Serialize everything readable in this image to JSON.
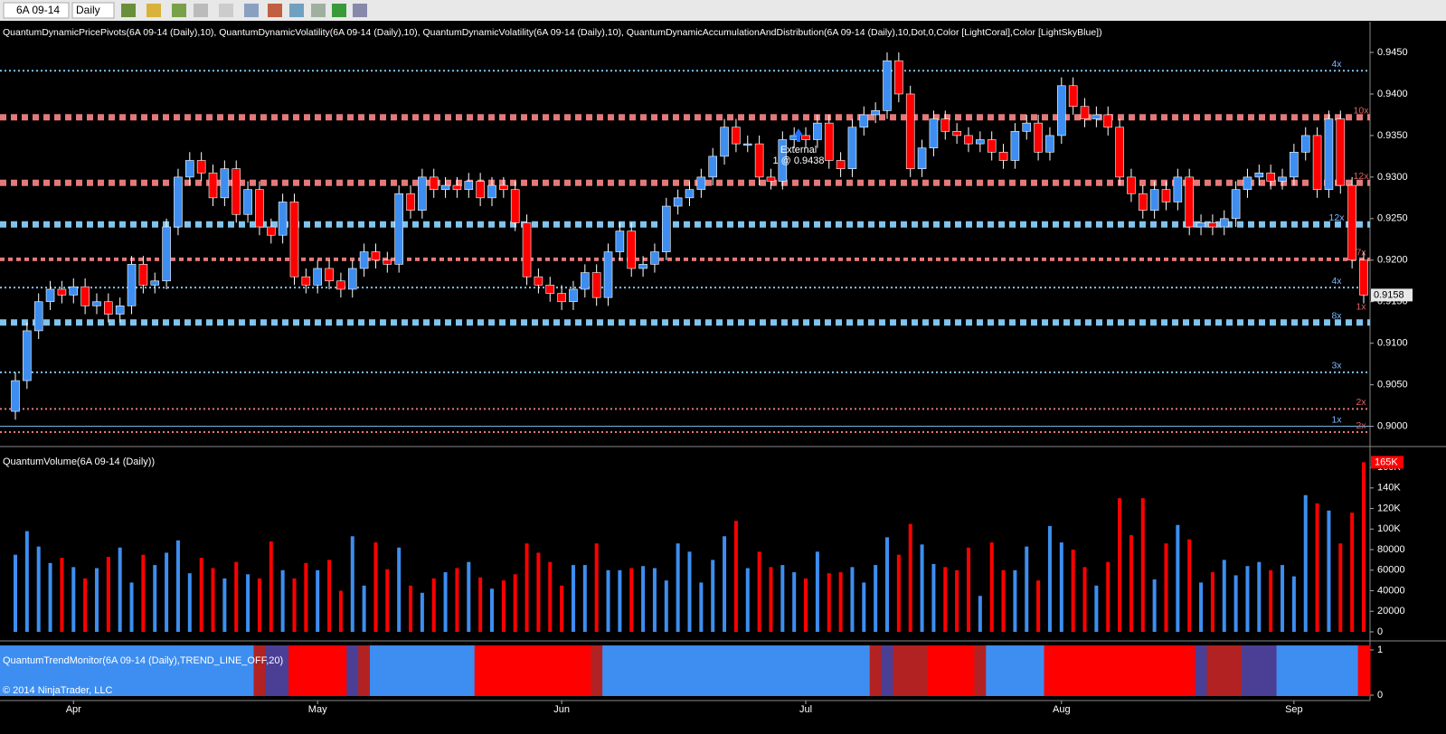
{
  "toolbar": {
    "instrument": "6A 09-14",
    "period": "Daily"
  },
  "chart_data": [
    {
      "type": "candlestick",
      "title": "QuantumDynamicPricePivots(6A 09-14 (Daily),10), QuantumDynamicVolatility(6A 09-14 (Daily),10), QuantumDynamicVolatility(6A 09-14 (Daily),10), QuantumDynamicAccumulationAndDistribution(6A 09-14 (Daily),10,Dot,0,Color [LightCoral],Color [LightSkyBlue])",
      "categories": [
        null,
        null,
        null,
        null,
        null,
        "Apr",
        null,
        null,
        null,
        null,
        null,
        null,
        null,
        null,
        null,
        null,
        null,
        null,
        null,
        null,
        null,
        null,
        null,
        null,
        null,
        null,
        "May",
        null,
        null,
        null,
        null,
        null,
        null,
        null,
        null,
        null,
        null,
        null,
        null,
        null,
        null,
        null,
        null,
        null,
        null,
        null,
        null,
        "Jun",
        null,
        null,
        null,
        null,
        null,
        null,
        null,
        null,
        null,
        null,
        null,
        null,
        null,
        null,
        null,
        null,
        null,
        null,
        null,
        null,
        "Jul",
        null,
        null,
        null,
        null,
        null,
        null,
        null,
        null,
        null,
        null,
        null,
        null,
        null,
        null,
        null,
        null,
        null,
        null,
        null,
        null,
        null,
        "Aug",
        null,
        null,
        null,
        null,
        null,
        null,
        null,
        null,
        null,
        null,
        null,
        null,
        null,
        null,
        null,
        null,
        null,
        null,
        null,
        "Sep",
        null,
        null,
        null,
        null,
        null,
        null
      ],
      "open": [
        0.9018,
        0.9055,
        0.9115,
        0.915,
        0.9165,
        0.9158,
        0.9168,
        0.9145,
        0.915,
        0.9135,
        0.9145,
        0.9195,
        0.917,
        0.9175,
        0.924,
        0.93,
        0.932,
        0.9305,
        0.9275,
        0.931,
        0.9255,
        0.9285,
        0.924,
        0.923,
        0.927,
        0.918,
        0.917,
        0.919,
        0.9175,
        0.9165,
        0.919,
        0.921,
        0.92,
        0.9195,
        0.928,
        0.926,
        0.93,
        0.9285,
        0.929,
        0.9285,
        0.9295,
        0.9275,
        0.929,
        0.9285,
        0.9245,
        0.918,
        0.917,
        0.916,
        0.915,
        0.9165,
        0.9185,
        0.9155,
        0.921,
        0.9235,
        0.919,
        0.9195,
        0.921,
        0.9265,
        0.9275,
        0.9285,
        0.93,
        0.9325,
        0.936,
        0.934,
        0.934,
        0.93,
        0.9295,
        0.9345,
        0.935,
        0.9345,
        0.9365,
        0.932,
        0.931,
        0.936,
        0.9375,
        0.938,
        0.944,
        0.94,
        0.931,
        0.9335,
        0.937,
        0.9355,
        0.935,
        0.934,
        0.9345,
        0.933,
        0.932,
        0.9355,
        0.9365,
        0.933,
        0.935,
        0.941,
        0.9385,
        0.937,
        0.9375,
        0.936,
        0.93,
        0.928,
        0.926,
        0.9285,
        0.927,
        0.93,
        0.924,
        0.9245,
        0.924,
        0.925,
        0.9285,
        0.93,
        0.9305,
        0.9295,
        0.93,
        0.933,
        0.935,
        0.9285,
        0.937,
        0.929,
        0.92
      ],
      "high": [
        0.9065,
        0.9125,
        0.916,
        0.9175,
        0.9175,
        0.9178,
        0.9178,
        0.916,
        0.916,
        0.9155,
        0.9205,
        0.9205,
        0.9185,
        0.925,
        0.931,
        0.933,
        0.933,
        0.9315,
        0.932,
        0.932,
        0.9295,
        0.9295,
        0.925,
        0.928,
        0.928,
        0.919,
        0.92,
        0.92,
        0.9185,
        0.92,
        0.922,
        0.922,
        0.921,
        0.929,
        0.929,
        0.931,
        0.931,
        0.93,
        0.93,
        0.9305,
        0.9305,
        0.93,
        0.93,
        0.9295,
        0.9255,
        0.919,
        0.918,
        0.917,
        0.9175,
        0.9195,
        0.9195,
        0.922,
        0.9245,
        0.9245,
        0.9205,
        0.922,
        0.9275,
        0.9285,
        0.9295,
        0.931,
        0.9335,
        0.937,
        0.937,
        0.935,
        0.935,
        0.931,
        0.9355,
        0.936,
        0.936,
        0.9375,
        0.9375,
        0.933,
        0.937,
        0.9385,
        0.939,
        0.945,
        0.945,
        0.941,
        0.9345,
        0.938,
        0.938,
        0.9365,
        0.936,
        0.9355,
        0.9355,
        0.934,
        0.9365,
        0.9375,
        0.9375,
        0.936,
        0.942,
        0.942,
        0.9395,
        0.9385,
        0.9385,
        0.937,
        0.931,
        0.929,
        0.9295,
        0.9295,
        0.931,
        0.931,
        0.9255,
        0.9255,
        0.926,
        0.9295,
        0.931,
        0.9315,
        0.9315,
        0.931,
        0.934,
        0.936,
        0.936,
        0.938,
        0.938,
        0.93,
        0.921
      ],
      "low": [
        0.9008,
        0.9045,
        0.9105,
        0.914,
        0.9148,
        0.9148,
        0.9135,
        0.9135,
        0.9125,
        0.9125,
        0.9135,
        0.916,
        0.916,
        0.9165,
        0.923,
        0.929,
        0.9295,
        0.9265,
        0.9265,
        0.9245,
        0.9245,
        0.923,
        0.922,
        0.922,
        0.917,
        0.916,
        0.916,
        0.9165,
        0.9155,
        0.9155,
        0.918,
        0.919,
        0.9185,
        0.9185,
        0.925,
        0.925,
        0.9275,
        0.9275,
        0.9275,
        0.9275,
        0.9265,
        0.9265,
        0.9275,
        0.9235,
        0.917,
        0.916,
        0.915,
        0.914,
        0.914,
        0.9155,
        0.9145,
        0.9145,
        0.92,
        0.918,
        0.918,
        0.9185,
        0.92,
        0.9255,
        0.9265,
        0.9275,
        0.929,
        0.9315,
        0.933,
        0.933,
        0.929,
        0.9285,
        0.9285,
        0.9335,
        0.9335,
        0.9335,
        0.931,
        0.93,
        0.93,
        0.935,
        0.9365,
        0.937,
        0.939,
        0.93,
        0.93,
        0.9325,
        0.9345,
        0.934,
        0.933,
        0.933,
        0.932,
        0.931,
        0.931,
        0.9345,
        0.932,
        0.932,
        0.934,
        0.9375,
        0.936,
        0.936,
        0.935,
        0.929,
        0.927,
        0.925,
        0.925,
        0.926,
        0.926,
        0.923,
        0.923,
        0.923,
        0.923,
        0.924,
        0.9275,
        0.929,
        0.9285,
        0.9285,
        0.929,
        0.932,
        0.9275,
        0.9275,
        0.928,
        0.919,
        0.9148
      ],
      "close": [
        0.9055,
        0.9115,
        0.915,
        0.9165,
        0.9158,
        0.9168,
        0.9145,
        0.915,
        0.9135,
        0.9145,
        0.9195,
        0.917,
        0.9175,
        0.924,
        0.93,
        0.932,
        0.9305,
        0.9275,
        0.931,
        0.9255,
        0.9285,
        0.924,
        0.923,
        0.927,
        0.918,
        0.917,
        0.919,
        0.9175,
        0.9165,
        0.919,
        0.921,
        0.92,
        0.9195,
        0.928,
        0.926,
        0.93,
        0.9285,
        0.929,
        0.9285,
        0.9295,
        0.9275,
        0.929,
        0.9285,
        0.9245,
        0.918,
        0.917,
        0.916,
        0.915,
        0.9165,
        0.9185,
        0.9155,
        0.921,
        0.9235,
        0.919,
        0.9195,
        0.921,
        0.9265,
        0.9275,
        0.9285,
        0.93,
        0.9325,
        0.936,
        0.934,
        0.934,
        0.93,
        0.9295,
        0.9345,
        0.935,
        0.9345,
        0.9365,
        0.932,
        0.931,
        0.936,
        0.9375,
        0.938,
        0.944,
        0.94,
        0.931,
        0.9335,
        0.937,
        0.9355,
        0.935,
        0.934,
        0.9345,
        0.933,
        0.932,
        0.9355,
        0.9365,
        0.933,
        0.935,
        0.941,
        0.9385,
        0.937,
        0.9375,
        0.936,
        0.93,
        0.928,
        0.926,
        0.9285,
        0.927,
        0.93,
        0.924,
        0.9245,
        0.924,
        0.925,
        0.9285,
        0.93,
        0.9305,
        0.9295,
        0.93,
        0.933,
        0.935,
        0.9285,
        0.937,
        0.929,
        0.92,
        0.9158
      ],
      "up_color": "#3d8ef0",
      "down_color": "#ff0000",
      "ylim": [
        0.898,
        0.9487
      ],
      "yticks": [
        {
          "value": 0.9,
          "label": "0.9000"
        },
        {
          "value": 0.905,
          "label": "0.9050"
        },
        {
          "value": 0.91,
          "label": "0.9100"
        },
        {
          "value": 0.915,
          "label": "0.9150"
        },
        {
          "value": 0.92,
          "label": "0.9200"
        },
        {
          "value": 0.925,
          "label": "0.9250"
        },
        {
          "value": 0.93,
          "label": "0.9300"
        },
        {
          "value": 0.935,
          "label": "0.9350"
        },
        {
          "value": 0.94,
          "label": "0.9400"
        },
        {
          "value": 0.945,
          "label": "0.9450"
        }
      ],
      "levels": [
        {
          "value": 0.9428,
          "label": "4x",
          "color": "#87cefa",
          "style": "thin"
        },
        {
          "value": 0.9372,
          "label": "10x",
          "color": "#f08080",
          "style": "thick"
        },
        {
          "value": 0.9293,
          "label": "12x",
          "color": "#f08080",
          "style": "thick"
        },
        {
          "value": 0.9243,
          "label": "12x",
          "color": "#87cefa",
          "style": "thick"
        },
        {
          "value": 0.9201,
          "label": "7x",
          "color": "#f08080",
          "style": "medium"
        },
        {
          "value": 0.9167,
          "label": "4x",
          "color": "#87cefa",
          "style": "thin"
        },
        {
          "value": 0.9136,
          "label": "1x",
          "color": "#f08080",
          "style": "label"
        },
        {
          "value": 0.9125,
          "label": "8x",
          "color": "#87cefa",
          "style": "thick"
        },
        {
          "value": 0.9065,
          "label": "3x",
          "color": "#87cefa",
          "style": "thin"
        },
        {
          "value": 0.9021,
          "label": "2x",
          "color": "#f08080",
          "style": "thin"
        },
        {
          "value": 0.9,
          "label": "1x",
          "color": "#87cefa",
          "style": "solid"
        },
        {
          "value": 0.8993,
          "label": "2x",
          "color": "#f08080",
          "style": "thin"
        }
      ],
      "last": {
        "value": 0.9158,
        "label": "0.9158"
      },
      "annotation": {
        "text": "External",
        "detail": "1 @ 0.9438"
      }
    },
    {
      "type": "bar",
      "title": "QuantumVolume(6A 09-14 (Daily))",
      "values": [
        75000,
        98000,
        83000,
        67000,
        72000,
        63000,
        52000,
        62000,
        73000,
        82000,
        48000,
        75000,
        65000,
        77000,
        89000,
        57000,
        72000,
        62000,
        52000,
        68000,
        56000,
        52000,
        88000,
        60000,
        52000,
        67000,
        60000,
        70000,
        40000,
        93000,
        45000,
        87000,
        61000,
        82000,
        45000,
        38000,
        52000,
        58000,
        62000,
        68000,
        53000,
        42000,
        50000,
        56000,
        86000,
        77000,
        68000,
        45000,
        65000,
        65000,
        86000,
        60000,
        60000,
        62000,
        64000,
        62000,
        50000,
        86000,
        78000,
        48000,
        70000,
        93000,
        108000,
        62000,
        78000,
        63000,
        65000,
        58000,
        52000,
        78000,
        57000,
        58000,
        63000,
        48000,
        65000,
        92000,
        75000,
        105000,
        85000,
        66000,
        63000,
        60000,
        82000,
        35000,
        87000,
        60000,
        60000,
        83000,
        50000,
        103000,
        87000,
        80000,
        63000,
        45000,
        68000,
        130000,
        94000,
        130000,
        51000,
        86000,
        104000,
        90000,
        48000,
        58000,
        70000,
        55000,
        64000,
        68000,
        60000,
        65000,
        54000,
        133000,
        125000,
        118000,
        86000,
        116000,
        165000
      ],
      "ylim": [
        0,
        175000
      ],
      "yticks": [
        0,
        20000,
        40000,
        60000,
        80000,
        {
          "value": 100000,
          "label": "100K"
        },
        {
          "value": 120000,
          "label": "120K"
        },
        {
          "value": 140000,
          "label": "140K"
        },
        {
          "value": 160000,
          "label": "160K"
        }
      ],
      "last_label": "165K"
    },
    {
      "type": "trend",
      "title": "QuantumTrendMonitor(6A 09-14 (Daily),TREND_LINE_OFF,20)",
      "colors": [
        "#3d8ef0",
        "#3d8ef0",
        "#3d8ef0",
        "#3d8ef0",
        "#3d8ef0",
        "#3d8ef0",
        "#3d8ef0",
        "#3d8ef0",
        "#3d8ef0",
        "#3d8ef0",
        "#3d8ef0",
        "#3d8ef0",
        "#3d8ef0",
        "#3d8ef0",
        "#3d8ef0",
        "#3d8ef0",
        "#3d8ef0",
        "#3d8ef0",
        "#3d8ef0",
        "#3d8ef0",
        "#3d8ef0",
        "#b22222",
        "#4b3f95",
        "#4b3f95",
        "#ff0000",
        "#ff0000",
        "#ff0000",
        "#ff0000",
        "#ff0000",
        "#4b3f95",
        "#b22222",
        "#3d8ef0",
        "#3d8ef0",
        "#3d8ef0",
        "#3d8ef0",
        "#3d8ef0",
        "#3d8ef0",
        "#3d8ef0",
        "#3d8ef0",
        "#3d8ef0",
        "#ff0000",
        "#ff0000",
        "#ff0000",
        "#ff0000",
        "#ff0000",
        "#ff0000",
        "#ff0000",
        "#ff0000",
        "#ff0000",
        "#ff0000",
        "#b22222",
        "#3d8ef0",
        "#3d8ef0",
        "#3d8ef0",
        "#3d8ef0",
        "#3d8ef0",
        "#3d8ef0",
        "#3d8ef0",
        "#3d8ef0",
        "#3d8ef0",
        "#3d8ef0",
        "#3d8ef0",
        "#3d8ef0",
        "#3d8ef0",
        "#3d8ef0",
        "#3d8ef0",
        "#3d8ef0",
        "#3d8ef0",
        "#3d8ef0",
        "#3d8ef0",
        "#3d8ef0",
        "#3d8ef0",
        "#3d8ef0",
        "#3d8ef0",
        "#b22222",
        "#4b3f95",
        "#b22222",
        "#b22222",
        "#b22222",
        "#ff0000",
        "#ff0000",
        "#ff0000",
        "#ff0000",
        "#b22222",
        "#3d8ef0",
        "#3d8ef0",
        "#3d8ef0",
        "#3d8ef0",
        "#3d8ef0",
        "#ff0000",
        "#ff0000",
        "#ff0000",
        "#ff0000",
        "#ff0000",
        "#ff0000",
        "#ff0000",
        "#ff0000",
        "#ff0000",
        "#ff0000",
        "#ff0000",
        "#ff0000",
        "#ff0000",
        "#4b3f95",
        "#b22222",
        "#b22222",
        "#b22222",
        "#4b3f95",
        "#4b3f95",
        "#4b3f95",
        "#3d8ef0",
        "#3d8ef0",
        "#3d8ef0",
        "#3d8ef0",
        "#3d8ef0",
        "#3d8ef0",
        "#3d8ef0",
        "#ff0000"
      ],
      "ylim": [
        0,
        1
      ],
      "yticks": [
        0,
        1
      ]
    }
  ],
  "copyright": "© 2014 NinjaTrader, LLC"
}
